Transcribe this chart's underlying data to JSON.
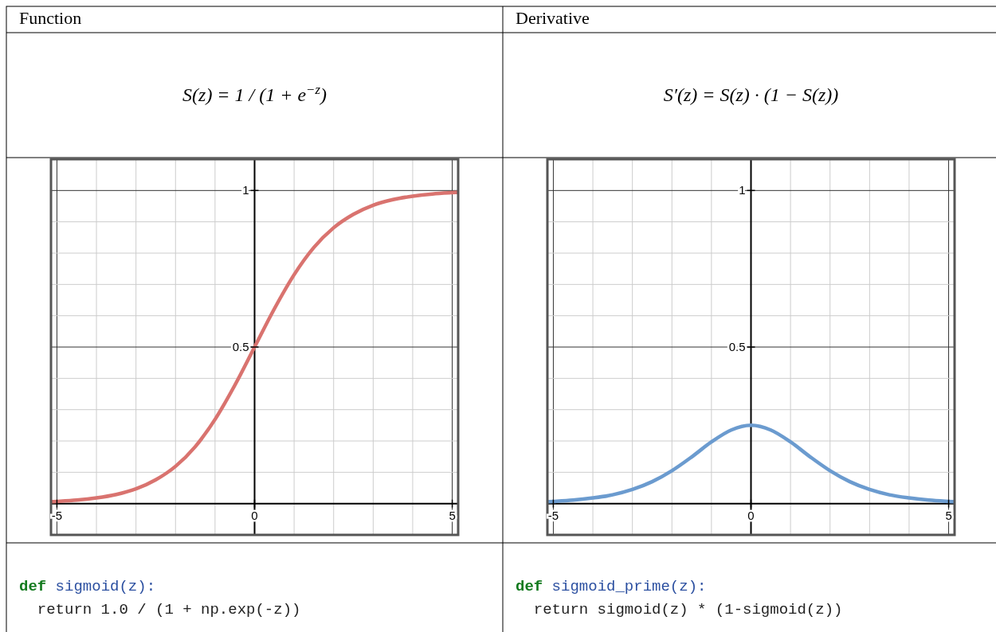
{
  "chart_data": [
    {
      "type": "line",
      "title": "Function",
      "subtitle": "S(z) = 1 / (1 + e$^{−z}$)",
      "annotations": [
        "def sigmoid(z):",
        "  return 1.0 / (1 + np.exp(-z))"
      ],
      "x": [
        -5.15,
        -5,
        -4.5,
        -4,
        -3.5,
        -3,
        -2.5,
        -2,
        -1.5,
        -1,
        -0.5,
        0,
        0.5,
        1,
        1.5,
        2,
        2.5,
        3,
        3.5,
        4,
        4.5,
        5,
        5.15
      ],
      "series": [
        {
          "color": "#d9736f",
          "values": [
            0.006,
            0.007,
            0.011,
            0.018,
            0.029,
            0.047,
            0.076,
            0.119,
            0.182,
            0.269,
            0.378,
            0.5,
            0.622,
            0.731,
            0.818,
            0.881,
            0.924,
            0.953,
            0.971,
            0.982,
            0.989,
            0.993,
            0.994
          ]
        }
      ],
      "xlim": [
        -5.15,
        5.15
      ],
      "ylim": [
        -0.1,
        1.1
      ],
      "xticks": [
        {
          "value": -5,
          "label": "-5"
        },
        {
          "value": -4,
          "label": null
        },
        {
          "value": -3,
          "label": null
        },
        {
          "value": -2,
          "label": null
        },
        {
          "value": -1,
          "label": null
        },
        {
          "value": 0,
          "label": "0"
        },
        {
          "value": 1,
          "label": null
        },
        {
          "value": 2,
          "label": null
        },
        {
          "value": 3,
          "label": null
        },
        {
          "value": 4,
          "label": null
        },
        {
          "value": 5,
          "label": "5"
        }
      ],
      "yticks": [
        {
          "value": 0.1,
          "label": null
        },
        {
          "value": 0.2,
          "label": null
        },
        {
          "value": 0.3,
          "label": null
        },
        {
          "value": 0.4,
          "label": null
        },
        {
          "value": 0.5,
          "label": "0.5"
        },
        {
          "value": 0.6,
          "label": null
        },
        {
          "value": 0.7,
          "label": null
        },
        {
          "value": 0.8,
          "label": null
        },
        {
          "value": 0.9,
          "label": null
        },
        {
          "value": 1,
          "label": "1"
        }
      ],
      "grid": true
    },
    {
      "type": "line",
      "title": "Derivative",
      "subtitle": "S′(z) = S(z) · (1 − S(z))",
      "annotations": [
        "def sigmoid_prime(z):",
        "  return sigmoid(z) * (1-sigmoid(z))"
      ],
      "x": [
        -5.15,
        -5,
        -4.5,
        -4,
        -3.5,
        -3,
        -2.5,
        -2,
        -1.5,
        -1,
        -0.5,
        0,
        0.5,
        1,
        1.5,
        2,
        2.5,
        3,
        3.5,
        4,
        4.5,
        5,
        5.15
      ],
      "series": [
        {
          "color": "#6b9bcf",
          "values": [
            0.006,
            0.007,
            0.011,
            0.018,
            0.028,
            0.045,
            0.07,
            0.105,
            0.149,
            0.197,
            0.235,
            0.25,
            0.235,
            0.197,
            0.149,
            0.105,
            0.07,
            0.045,
            0.028,
            0.018,
            0.011,
            0.007,
            0.006
          ]
        }
      ],
      "xlim": [
        -5.15,
        5.15
      ],
      "ylim": [
        -0.1,
        1.1
      ],
      "xticks": [
        {
          "value": -5,
          "label": "-5"
        },
        {
          "value": -4,
          "label": null
        },
        {
          "value": -3,
          "label": null
        },
        {
          "value": -2,
          "label": null
        },
        {
          "value": -1,
          "label": null
        },
        {
          "value": 0,
          "label": "0"
        },
        {
          "value": 1,
          "label": null
        },
        {
          "value": 2,
          "label": null
        },
        {
          "value": 3,
          "label": null
        },
        {
          "value": 4,
          "label": null
        },
        {
          "value": 5,
          "label": "5"
        }
      ],
      "yticks": [
        {
          "value": 0.1,
          "label": null
        },
        {
          "value": 0.2,
          "label": null
        },
        {
          "value": 0.3,
          "label": null
        },
        {
          "value": 0.4,
          "label": null
        },
        {
          "value": 0.5,
          "label": "0.5"
        },
        {
          "value": 0.6,
          "label": null
        },
        {
          "value": 0.7,
          "label": null
        },
        {
          "value": 0.8,
          "label": null
        },
        {
          "value": 0.9,
          "label": null
        },
        {
          "value": 1,
          "label": "1"
        }
      ],
      "grid": true
    }
  ]
}
